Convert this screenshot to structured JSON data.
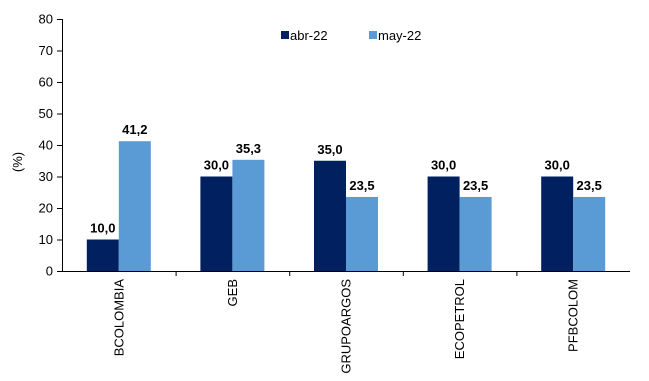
{
  "chart_data": {
    "type": "bar",
    "title": "",
    "xlabel": "",
    "ylabel": "(%)",
    "ylim": [
      0,
      80
    ],
    "yticks": [
      0,
      10,
      20,
      30,
      40,
      50,
      60,
      70,
      80
    ],
    "grid": false,
    "legend_position": "top-center",
    "categories": [
      "BCOLOMBIA",
      "GEB",
      "GRUPOARGOS",
      "ECOPETROL",
      "PFBCOLOM"
    ],
    "series": [
      {
        "name": "abr-22",
        "color": "#002060",
        "values": [
          10.0,
          30.0,
          35.0,
          30.0,
          30.0
        ],
        "labels": [
          "10,0",
          "30,0",
          "35,0",
          "30,0",
          "30,0"
        ]
      },
      {
        "name": "may-22",
        "color": "#5B9BD5",
        "values": [
          41.2,
          35.3,
          23.5,
          23.5,
          23.5
        ],
        "labels": [
          "41,2",
          "35,3",
          "23,5",
          "23,5",
          "23,5"
        ]
      }
    ]
  }
}
